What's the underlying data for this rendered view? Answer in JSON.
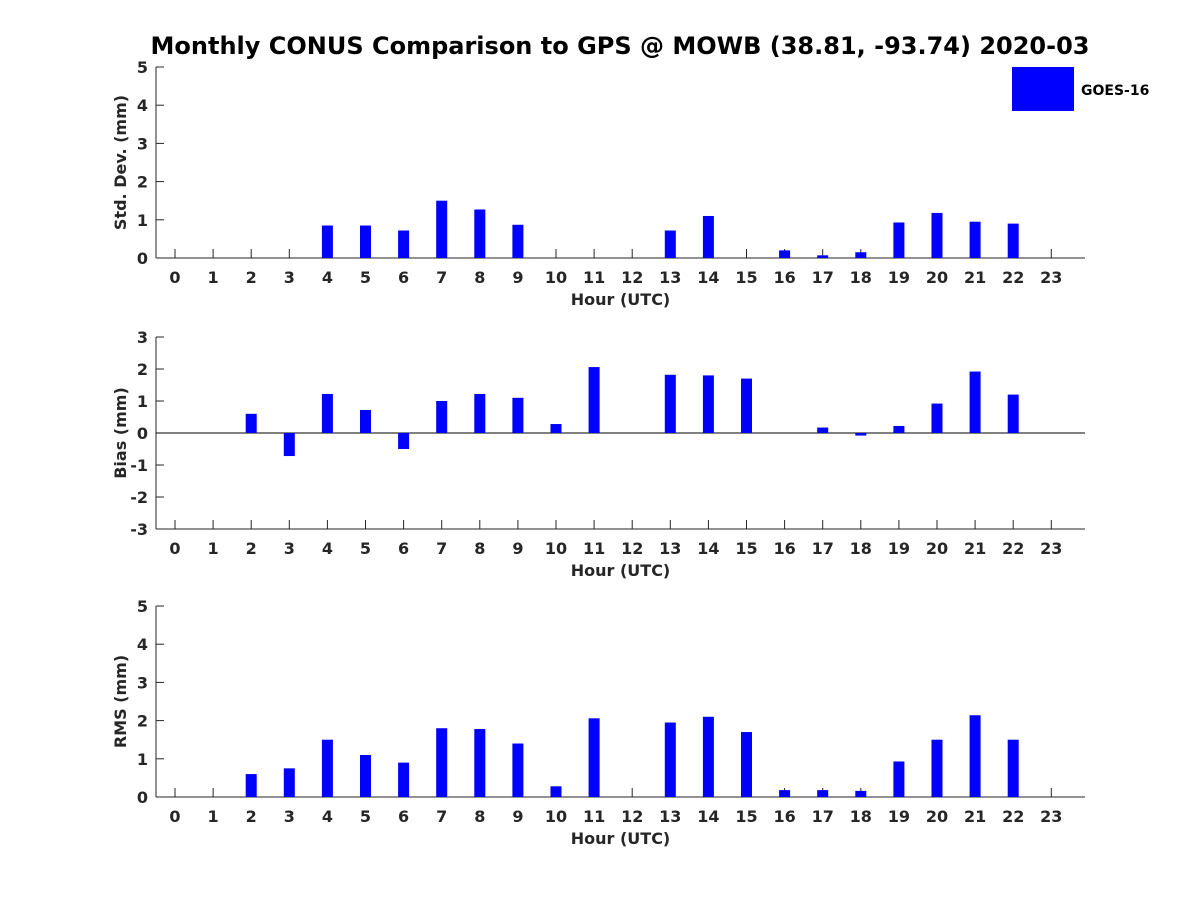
{
  "figure_title": "Monthly CONUS Comparison to GPS @ MOWB (38.81, -93.74) 2020-03",
  "legend": {
    "label": "GOES-16",
    "color": "#0000ff"
  },
  "chart_data": [
    {
      "type": "bar",
      "xlabel": "Hour (UTC)",
      "ylabel": "Std. Dev. (mm)",
      "ylim": [
        0,
        5
      ],
      "yticks": [
        "0",
        "1",
        "2",
        "3",
        "4",
        "5"
      ],
      "categories": [
        "0",
        "1",
        "2",
        "3",
        "4",
        "5",
        "6",
        "7",
        "8",
        "9",
        "10",
        "11",
        "12",
        "13",
        "14",
        "15",
        "16",
        "17",
        "18",
        "19",
        "20",
        "21",
        "22",
        "23"
      ],
      "series": [
        {
          "name": "GOES-16",
          "color": "#0000ff",
          "values": [
            null,
            null,
            null,
            null,
            0.85,
            0.85,
            0.72,
            1.5,
            1.27,
            0.87,
            null,
            null,
            null,
            0.72,
            1.1,
            null,
            0.2,
            0.07,
            0.15,
            0.93,
            1.18,
            0.95,
            0.9,
            null
          ]
        }
      ]
    },
    {
      "type": "bar",
      "xlabel": "Hour (UTC)",
      "ylabel": "Bias (mm)",
      "ylim": [
        -3,
        3
      ],
      "yticks": [
        "-3",
        "-2",
        "-1",
        "0",
        "1",
        "2",
        "3"
      ],
      "categories": [
        "0",
        "1",
        "2",
        "3",
        "4",
        "5",
        "6",
        "7",
        "8",
        "9",
        "10",
        "11",
        "12",
        "13",
        "14",
        "15",
        "16",
        "17",
        "18",
        "19",
        "20",
        "21",
        "22",
        "23"
      ],
      "series": [
        {
          "name": "GOES-16",
          "color": "#0000ff",
          "values": [
            null,
            null,
            0.6,
            -0.72,
            1.22,
            0.72,
            -0.5,
            1.0,
            1.22,
            1.1,
            0.28,
            2.06,
            null,
            1.82,
            1.8,
            1.7,
            null,
            0.17,
            -0.08,
            0.22,
            0.92,
            1.92,
            1.2,
            null
          ]
        }
      ]
    },
    {
      "type": "bar",
      "xlabel": "Hour (UTC)",
      "ylabel": "RMS (mm)",
      "ylim": [
        0,
        5
      ],
      "yticks": [
        "0",
        "1",
        "2",
        "3",
        "4",
        "5"
      ],
      "categories": [
        "0",
        "1",
        "2",
        "3",
        "4",
        "5",
        "6",
        "7",
        "8",
        "9",
        "10",
        "11",
        "12",
        "13",
        "14",
        "15",
        "16",
        "17",
        "18",
        "19",
        "20",
        "21",
        "22",
        "23"
      ],
      "series": [
        {
          "name": "GOES-16",
          "color": "#0000ff",
          "values": [
            null,
            null,
            0.6,
            0.75,
            1.5,
            1.1,
            0.9,
            1.8,
            1.78,
            1.4,
            0.28,
            2.06,
            null,
            1.95,
            2.1,
            1.7,
            0.18,
            0.18,
            0.16,
            0.93,
            1.5,
            2.14,
            1.5,
            null
          ]
        }
      ]
    }
  ]
}
